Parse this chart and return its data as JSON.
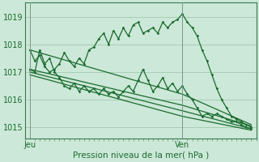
{
  "xlabel": "Pression niveau de la mer( hPa )",
  "bg_color": "#cce8d8",
  "grid_color": "#99c4aa",
  "line_color": "#1a6b2e",
  "ylim": [
    1014.6,
    1019.5
  ],
  "xlim": [
    0,
    47
  ],
  "yticks": [
    1015,
    1016,
    1017,
    1018,
    1019
  ],
  "xtick_positions": [
    1,
    32
  ],
  "xtick_labels": [
    "Jeu",
    "Ven"
  ],
  "vline_positions": [
    1,
    32
  ],
  "series": [
    {
      "x": [
        1,
        2,
        3,
        4,
        5,
        6,
        7,
        8,
        9,
        10,
        11,
        12,
        13,
        14,
        15,
        16,
        17,
        18,
        19,
        20,
        21,
        22,
        23,
        24,
        25,
        26,
        27,
        28,
        29,
        30,
        31,
        32,
        33,
        34,
        35,
        36,
        37,
        38,
        39,
        40,
        41,
        42,
        43,
        44,
        45,
        46
      ],
      "y": [
        1017.8,
        1017.4,
        1017.6,
        1017.2,
        1017.0,
        1017.1,
        1017.3,
        1017.7,
        1017.4,
        1017.2,
        1017.5,
        1017.3,
        1017.8,
        1017.9,
        1018.2,
        1018.4,
        1018.0,
        1018.5,
        1018.2,
        1018.6,
        1018.3,
        1018.7,
        1018.8,
        1018.4,
        1018.5,
        1018.6,
        1018.4,
        1018.8,
        1018.6,
        1018.8,
        1018.9,
        1019.1,
        1018.8,
        1018.6,
        1018.3,
        1017.8,
        1017.4,
        1016.9,
        1016.4,
        1016.0,
        1015.7,
        1015.4,
        1015.3,
        1015.2,
        1015.1,
        1015.0
      ]
    },
    {
      "x": [
        1,
        32,
        46
      ],
      "y": [
        1017.8,
        1016.2,
        1015.1
      ]
    },
    {
      "x": [
        1,
        32,
        46
      ],
      "y": [
        1017.1,
        1015.8,
        1015.05
      ]
    },
    {
      "x": [
        1,
        32,
        46
      ],
      "y": [
        1017.0,
        1015.6,
        1014.95
      ]
    },
    {
      "x": [
        1,
        32,
        46
      ],
      "y": [
        1016.9,
        1015.4,
        1014.9
      ]
    },
    {
      "x": [
        1,
        2,
        3,
        4,
        5,
        6,
        7,
        8,
        9,
        10,
        11,
        12,
        13,
        14,
        15,
        16,
        17,
        18,
        19,
        20,
        21,
        22,
        23,
        24,
        25,
        26,
        27,
        28,
        29,
        30,
        31,
        32,
        33,
        34,
        35,
        36,
        37,
        38,
        39,
        40,
        41,
        42,
        43,
        44,
        45,
        46
      ],
      "y": [
        1017.1,
        1017.0,
        1017.8,
        1017.3,
        1017.5,
        1017.0,
        1016.8,
        1016.5,
        1016.4,
        1016.6,
        1016.3,
        1016.5,
        1016.3,
        1016.4,
        1016.2,
        1016.4,
        1016.2,
        1016.3,
        1016.1,
        1016.3,
        1016.5,
        1016.3,
        1016.7,
        1017.1,
        1016.7,
        1016.3,
        1016.5,
        1016.8,
        1016.4,
        1016.6,
        1016.3,
        1016.5,
        1016.2,
        1016.0,
        1015.7,
        1015.4,
        1015.5,
        1015.4,
        1015.5,
        1015.4,
        1015.3,
        1015.2,
        1015.2,
        1015.1,
        1015.0,
        1014.95
      ]
    }
  ]
}
